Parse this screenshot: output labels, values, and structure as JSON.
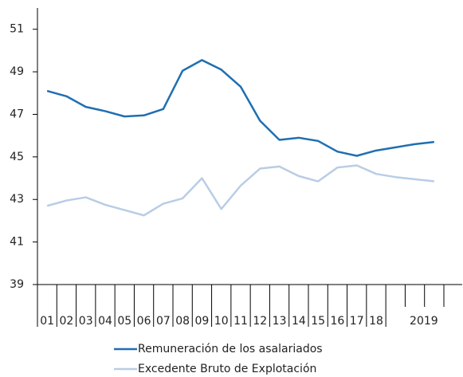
{
  "chart_data": {
    "type": "line",
    "categories": [
      "01",
      "02",
      "03",
      "04",
      "05",
      "06",
      "07",
      "08",
      "09",
      "10",
      "11",
      "12",
      "13",
      "14",
      "15",
      "16",
      "17",
      "18",
      null,
      null,
      "2019"
    ],
    "series": [
      {
        "name": "Remuneración de los asalariados",
        "color": "#1f6fb2",
        "values": [
          48.1,
          47.85,
          47.35,
          47.15,
          46.9,
          46.95,
          47.25,
          49.05,
          49.55,
          49.1,
          48.3,
          46.7,
          45.8,
          45.9,
          45.75,
          45.25,
          45.05,
          45.3,
          45.45,
          45.6,
          45.7
        ]
      },
      {
        "name": "Excedente Bruto de Explotación",
        "color": "#b9cde5",
        "values": [
          42.7,
          42.95,
          43.1,
          42.75,
          42.5,
          42.25,
          42.8,
          43.05,
          44.0,
          42.55,
          43.65,
          44.45,
          44.55,
          44.1,
          43.85,
          44.5,
          44.6,
          44.2,
          44.05,
          43.95,
          43.85
        ]
      }
    ],
    "ylim": [
      39,
      52
    ],
    "yticks": [
      39,
      41,
      43,
      45,
      47,
      49,
      51
    ],
    "grid": false
  }
}
